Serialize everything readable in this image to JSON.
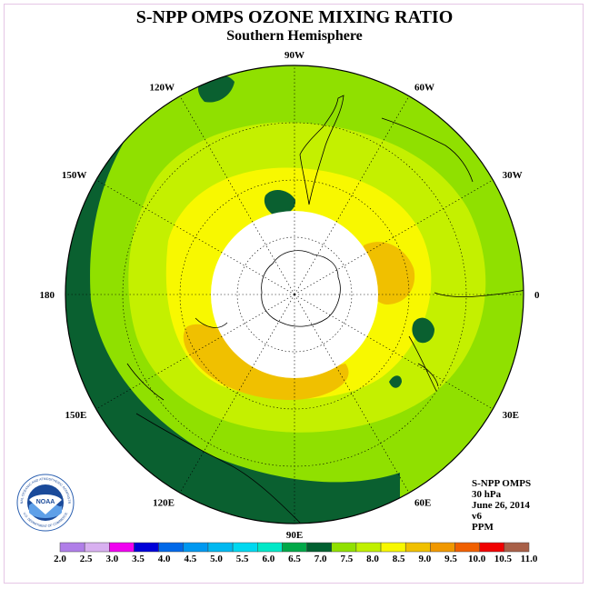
{
  "title": "S-NPP OMPS OZONE MIXING RATIO",
  "subtitle": "Southern Hemisphere",
  "longitude_labels": [
    {
      "text": "90W",
      "lon": -90
    },
    {
      "text": "60W",
      "lon": -60
    },
    {
      "text": "30W",
      "lon": -30
    },
    {
      "text": "0",
      "lon": 0
    },
    {
      "text": "30E",
      "lon": 30
    },
    {
      "text": "60E",
      "lon": 60
    },
    {
      "text": "90E",
      "lon": 90
    },
    {
      "text": "120E",
      "lon": 120
    },
    {
      "text": "150E",
      "lon": 150
    },
    {
      "text": "180",
      "lon": 180
    },
    {
      "text": "150W",
      "lon": -150
    },
    {
      "text": "120W",
      "lon": -120
    }
  ],
  "info": {
    "instrument": "S-NPP OMPS",
    "level": "30 hPa",
    "date": "June 26, 2014",
    "version": "v6",
    "units": "PPM"
  },
  "logo": {
    "text": "NOAA",
    "ring_text": "NATIONAL OCEANIC AND ATMOSPHERIC ADMINISTRATION",
    "bottom_text": "U.S. DEPARTMENT OF COMMERCE"
  },
  "colorbar": {
    "labels": [
      "2.0",
      "2.5",
      "3.0",
      "3.5",
      "4.0",
      "4.5",
      "5.0",
      "5.5",
      "6.0",
      "6.5",
      "7.0",
      "7.5",
      "8.0",
      "8.5",
      "9.0",
      "9.5",
      "10.0",
      "10.5",
      "11.0"
    ],
    "colors": [
      "#b07ee8",
      "#d8b0f0",
      "#f000f0",
      "#0000d8",
      "#0068e8",
      "#0098f0",
      "#00b8f0",
      "#00d8f0",
      "#00e8c8",
      "#00a848",
      "#006030",
      "#90e000",
      "#c0f000",
      "#f8f800",
      "#f0c000",
      "#f09800",
      "#f06000",
      "#f00000",
      "#a86048"
    ]
  },
  "map_colors": {
    "dark_green": "#0a6030",
    "green": "#90e000",
    "light_green": "#c4f000",
    "yellow": "#f8f800",
    "orange": "#f0c000",
    "dark_orange": "#f0a800",
    "no_data": "#ffffff"
  }
}
